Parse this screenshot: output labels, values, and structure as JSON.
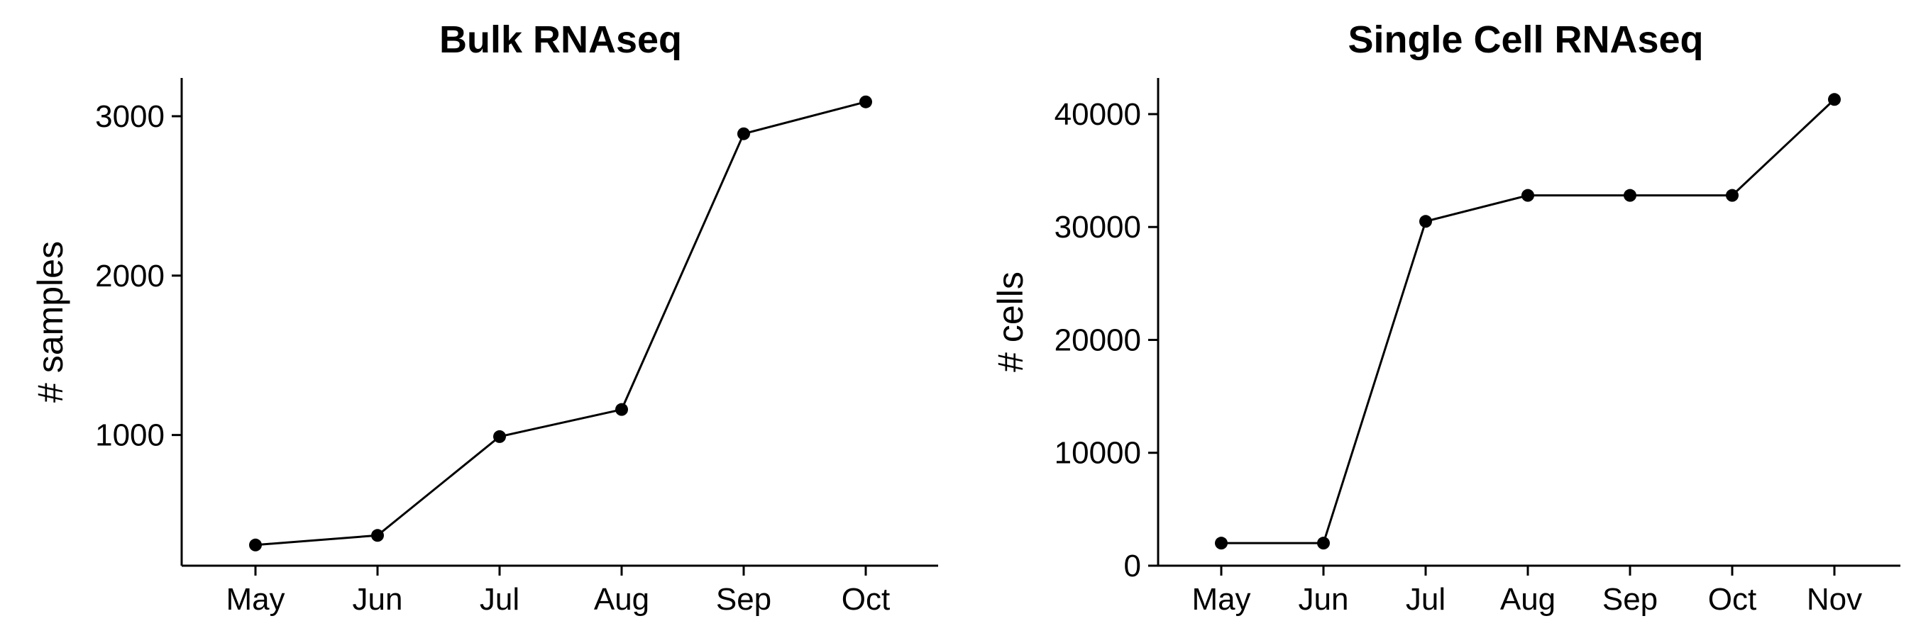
{
  "chart_data": [
    {
      "type": "line",
      "title": "Bulk RNAseq",
      "xlabel": "",
      "ylabel": "# samples",
      "categories": [
        "May",
        "Jun",
        "Jul",
        "Aug",
        "Sep",
        "Oct"
      ],
      "values": [
        310,
        370,
        990,
        1160,
        2890,
        3090
      ],
      "ylim": [
        180,
        3240
      ],
      "yticks": [
        1000,
        2000,
        3000
      ],
      "grid": false,
      "legend": "none"
    },
    {
      "type": "line",
      "title": "Single Cell RNAseq",
      "xlabel": "",
      "ylabel": "# cells",
      "categories": [
        "May",
        "Jun",
        "Jul",
        "Aug",
        "Sep",
        "Oct",
        "Nov"
      ],
      "values": [
        2000,
        2000,
        30500,
        32800,
        32800,
        32800,
        41300
      ],
      "ylim": [
        0,
        43200
      ],
      "yticks": [
        0,
        10000,
        20000,
        30000,
        40000
      ],
      "grid": false,
      "legend": "none"
    }
  ]
}
